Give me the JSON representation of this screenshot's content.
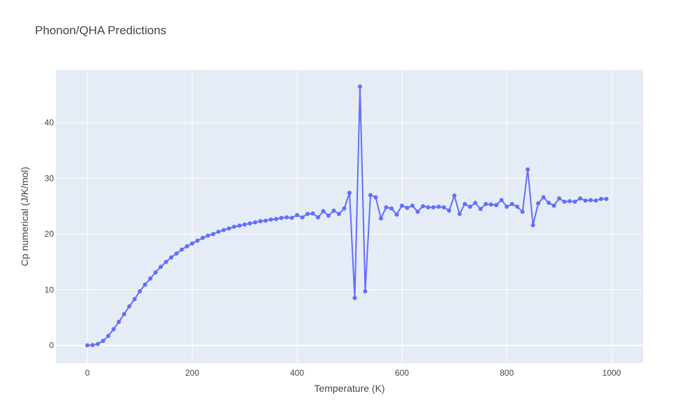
{
  "chart_data": {
    "type": "line",
    "title": "Phonon/QHA Predictions",
    "xlabel": "Temperature (K)",
    "ylabel": "Cp numerical (J/K/mol)",
    "xlim": [
      -60,
      1060
    ],
    "ylim": [
      -3.2,
      49.5
    ],
    "xticks": [
      0,
      200,
      400,
      600,
      800,
      1000
    ],
    "yticks": [
      0,
      10,
      20,
      30,
      40
    ],
    "grid": true,
    "colors": {
      "plot_bg": "#e5ecf6",
      "grid": "#ffffff",
      "series": "#636efa"
    },
    "series": [
      {
        "name": "",
        "x": [
          0,
          10,
          20,
          30,
          40,
          50,
          60,
          70,
          80,
          90,
          100,
          110,
          120,
          130,
          140,
          150,
          160,
          170,
          180,
          190,
          200,
          210,
          220,
          230,
          240,
          250,
          260,
          270,
          280,
          290,
          300,
          310,
          320,
          330,
          340,
          350,
          360,
          370,
          380,
          390,
          400,
          410,
          420,
          430,
          440,
          450,
          460,
          470,
          480,
          490,
          500,
          510,
          520,
          530,
          540,
          550,
          560,
          570,
          580,
          590,
          600,
          610,
          620,
          630,
          640,
          650,
          660,
          670,
          680,
          690,
          700,
          710,
          720,
          730,
          740,
          750,
          760,
          770,
          780,
          790,
          800,
          810,
          820,
          830,
          840,
          850,
          860,
          870,
          880,
          890,
          900,
          910,
          920,
          930,
          940,
          950,
          960,
          970,
          980,
          990
        ],
        "y": [
          0.0,
          0.05,
          0.25,
          0.8,
          1.7,
          2.9,
          4.2,
          5.6,
          7.0,
          8.3,
          9.7,
          10.9,
          12.0,
          13.1,
          14.1,
          15.0,
          15.8,
          16.5,
          17.2,
          17.8,
          18.3,
          18.8,
          19.3,
          19.7,
          20.0,
          20.4,
          20.7,
          21.0,
          21.3,
          21.5,
          21.7,
          21.9,
          22.1,
          22.3,
          22.4,
          22.6,
          22.7,
          22.9,
          23.0,
          22.9,
          23.4,
          23.0,
          23.6,
          23.7,
          23.0,
          24.1,
          23.3,
          24.2,
          23.6,
          24.6,
          27.4,
          8.5,
          46.5,
          9.7,
          27.0,
          26.6,
          22.8,
          24.8,
          24.6,
          23.5,
          25.1,
          24.7,
          25.1,
          24.0,
          25.0,
          24.8,
          24.8,
          24.9,
          24.8,
          24.2,
          26.9,
          23.6,
          25.4,
          24.9,
          25.6,
          24.5,
          25.4,
          25.3,
          25.2,
          26.1,
          24.9,
          25.4,
          24.9,
          24.0,
          31.6,
          21.6,
          25.5,
          26.6,
          25.6,
          25.1,
          26.4,
          25.8,
          25.9,
          25.8,
          26.4,
          26.0,
          26.1,
          26.0,
          26.3,
          26.3
        ]
      }
    ]
  }
}
